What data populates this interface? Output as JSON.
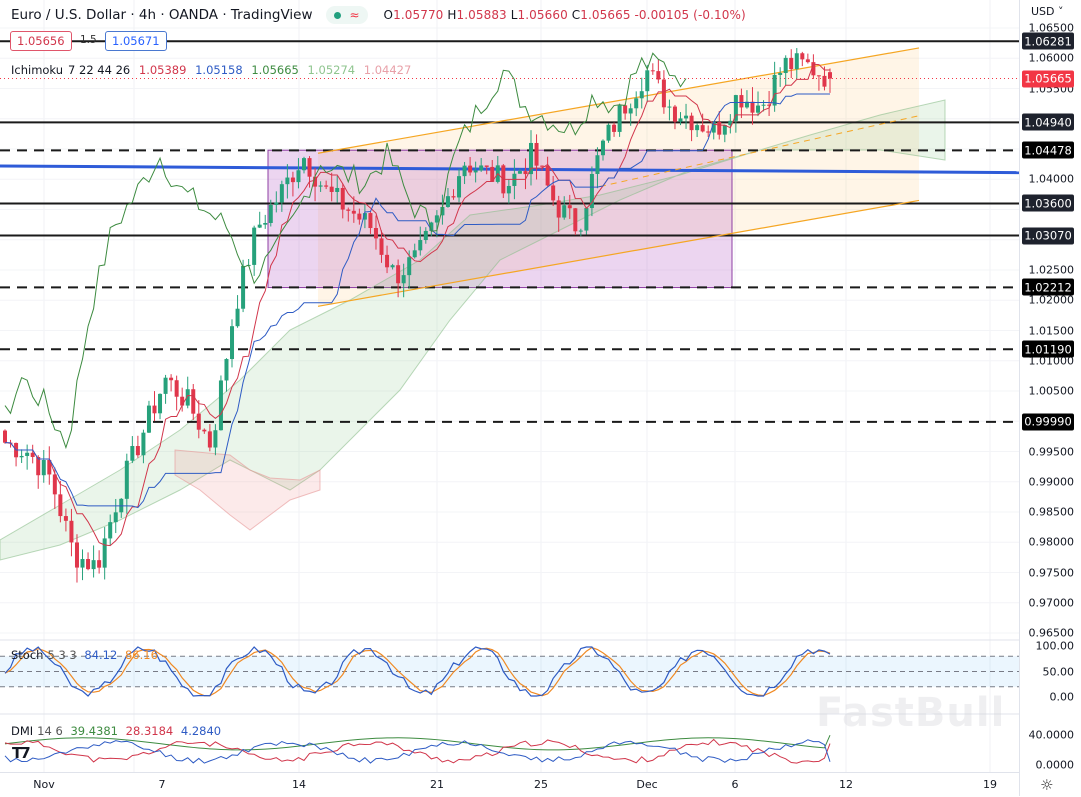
{
  "header": {
    "title": "Euro / U.S. Dollar · 4h · OANDA · TradingView",
    "status_icons": [
      "market-open-dot-icon",
      "delayed-wave-icon"
    ],
    "ohlc": {
      "o_label": "O",
      "o": "1.05770",
      "h_label": "H",
      "h": "1.05883",
      "l_label": "L",
      "l": "1.05660",
      "c_label": "C",
      "c": "1.05665",
      "change": "-0.00105 (-0.10%)"
    }
  },
  "trade": {
    "sell_price": "1.05656",
    "spread": "1.5",
    "buy_price": "1.05671"
  },
  "ichimoku": {
    "label": "Ichimoku",
    "params": "7 22 44 26",
    "values": [
      "1.05389",
      "1.05158",
      "1.05665",
      "1.05274",
      "1.04427"
    ],
    "colors": [
      "#d1364b",
      "#2e5bc4",
      "#3d8b40",
      "#8fc58f",
      "#e8a0a8"
    ]
  },
  "stoch": {
    "label": "Stoch",
    "params": "5 3 3",
    "k": "84.12",
    "d": "86.16"
  },
  "dmi": {
    "label": "DMI",
    "params": "14 6",
    "adx": "39.4381",
    "plus_di": "28.3184",
    "minus_di": "4.2840"
  },
  "price_axis": {
    "currency": "USD",
    "ticks": [
      "1.06500",
      "1.06000",
      "1.05500",
      "1.04000",
      "1.02500",
      "1.02000",
      "1.01500",
      "1.01000",
      "1.00500",
      "0.99500",
      "0.99000",
      "0.98500",
      "0.98000",
      "0.97500",
      "0.97000",
      "0.96500"
    ],
    "level_tags": [
      {
        "value": "1.06281",
        "style": "dark"
      },
      {
        "value": "1.05665",
        "style": "red"
      },
      {
        "value": "1.04940",
        "style": "dark"
      },
      {
        "value": "1.04478",
        "style": "black"
      },
      {
        "value": "1.03600",
        "style": "dark"
      },
      {
        "value": "1.03070",
        "style": "dark"
      },
      {
        "value": "1.02212",
        "style": "black"
      },
      {
        "value": "1.01190",
        "style": "black"
      },
      {
        "value": "0.99990",
        "style": "black"
      }
    ],
    "stoch_ticks": [
      "100.00",
      "50.00",
      "0.00"
    ],
    "dmi_ticks": [
      "40.0000",
      "0.0000"
    ]
  },
  "time_axis": {
    "labels": [
      "Nov",
      "7",
      "14",
      "21",
      "25",
      "Dec",
      "6",
      "12",
      "19"
    ]
  },
  "watermark": "FastBull",
  "chart_data": {
    "type": "candlestick",
    "title": "Euro / U.S. Dollar · 4h · OANDA",
    "symbol": "EURUSD",
    "timeframe": "4h",
    "xlabel": "",
    "ylabel": "USD",
    "ylim": [
      0.963,
      1.067
    ],
    "x_ticks": [
      "Nov",
      "7",
      "14",
      "21",
      "25",
      "Dec",
      "6",
      "12",
      "19"
    ],
    "last": {
      "open": 1.0577,
      "high": 1.05883,
      "low": 1.0566,
      "close": 1.05665,
      "change": -0.00105,
      "change_pct": -0.1
    },
    "horizontal_levels": [
      {
        "price": 1.06281,
        "style": "solid"
      },
      {
        "price": 1.0494,
        "style": "solid"
      },
      {
        "price": 1.04478,
        "style": "dashed"
      },
      {
        "price": 1.036,
        "style": "solid"
      },
      {
        "price": 1.0307,
        "style": "solid"
      },
      {
        "price": 1.02212,
        "style": "dashed"
      },
      {
        "price": 1.0119,
        "style": "dashed"
      },
      {
        "price": 0.9999,
        "style": "dashed"
      }
    ],
    "trend_line_blue": {
      "from_price": 1.0422,
      "to_price": 1.0411
    },
    "rising_channel": {
      "upper_start": 1.0443,
      "upper_end": 1.0617,
      "lower_start": 1.019,
      "lower_end": 1.0365
    },
    "consolidation_box": {
      "top": 1.0448,
      "bottom": 1.0221
    },
    "approx_close_path": [
      0.9965,
      0.995,
      0.9905,
      0.978,
      0.976,
      0.9885,
      0.998,
      1.007,
      1.003,
      0.996,
      1.0185,
      1.032,
      1.0375,
      1.044,
      1.038,
      1.035,
      1.032,
      1.024,
      1.027,
      1.034,
      1.043,
      1.041,
      1.0395,
      1.044,
      1.036,
      1.032,
      1.045,
      1.052,
      1.058,
      1.052,
      1.05,
      1.048,
      1.054,
      1.052,
      1.059,
      1.0588,
      1.0567
    ],
    "indicators": {
      "ichimoku": {
        "params": [
          7,
          22,
          44,
          26
        ],
        "tenkan": 1.05389,
        "kijun": 1.05158,
        "chikou": 1.05665,
        "span_a": 1.05274,
        "span_b": 1.04427
      },
      "stochastic": {
        "params": [
          5,
          3,
          3
        ],
        "k": 84.12,
        "d": 86.16,
        "levels": [
          80,
          50,
          20
        ],
        "ylim": [
          0,
          100
        ]
      },
      "dmi": {
        "params": [
          14,
          6
        ],
        "adx": 39.4381,
        "plus_di": 28.3184,
        "minus_di": 4.284,
        "ylim": [
          0,
          45
        ]
      }
    }
  }
}
